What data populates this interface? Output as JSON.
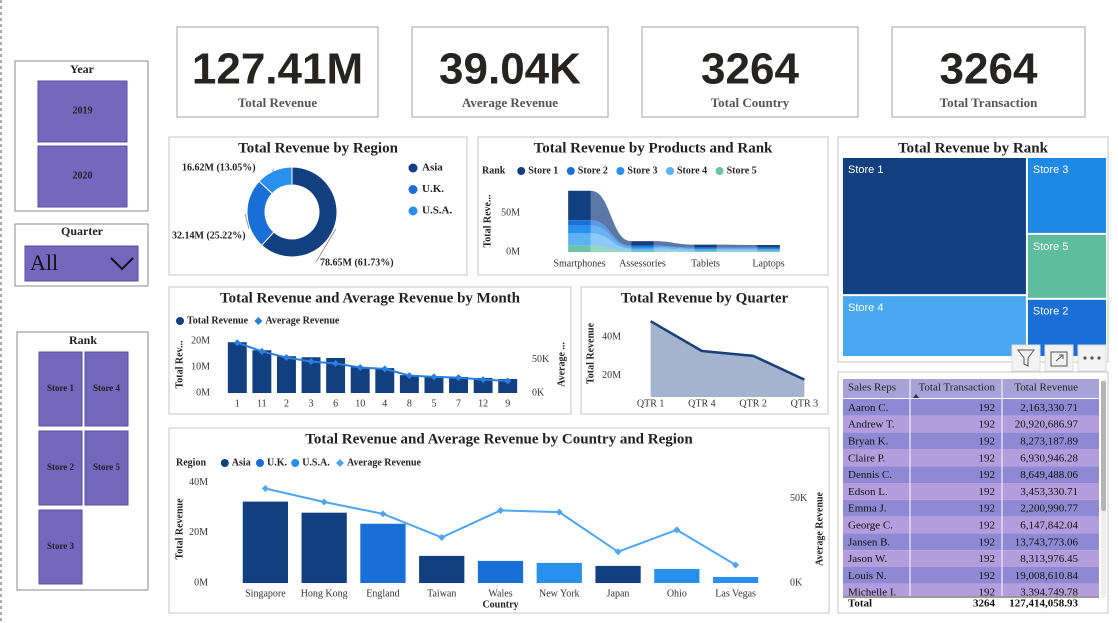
{
  "cards": [
    {
      "value": "127.41M",
      "label": "Total Revenue"
    },
    {
      "value": "39.04K",
      "label": "Average Revenue"
    },
    {
      "value": "3264",
      "label": "Total Country"
    },
    {
      "value": "3264",
      "label": "Total Transaction"
    }
  ],
  "slicers": {
    "year": {
      "title": "Year",
      "items": [
        "2019",
        "2020"
      ]
    },
    "quarter": {
      "title": "Quarter",
      "selected": "All"
    },
    "rank": {
      "title": "Rank",
      "items": [
        "Store 1",
        "Store 4",
        "Store 2",
        "Store 5",
        "Store 3"
      ]
    }
  },
  "chart_data": [
    {
      "type": "donut",
      "title": "Total Revenue by Region",
      "categories": [
        "Asia",
        "U.K.",
        "U.S.A."
      ],
      "values": [
        78.65,
        32.14,
        16.62
      ],
      "value_labels": [
        "78.65M (61.73%)",
        "32.14M (25.22%)",
        "16.62M (13.05%)"
      ],
      "colors": [
        "#123f80",
        "#1a6fd6",
        "#2a90ee"
      ],
      "legend": "right"
    },
    {
      "type": "ribbon",
      "title": "Total Revenue by Products and Rank",
      "legend_title": "Rank",
      "categories": [
        "Smartphones",
        "Assessories",
        "Tablets",
        "Laptops"
      ],
      "ylabel": "Total Reve...",
      "ylim": [
        0,
        80
      ],
      "yticks": [
        {
          "value": 0,
          "label": "0M"
        },
        {
          "value": 50,
          "label": "50M"
        }
      ],
      "series": [
        {
          "name": "Store 1",
          "color": "#123f80",
          "values": [
            38,
            6,
            4,
            3.5
          ]
        },
        {
          "name": "Store 2",
          "color": "#1a6fd6",
          "values": [
            7,
            1.5,
            1,
            1
          ]
        },
        {
          "name": "Store 3",
          "color": "#2a90ee",
          "values": [
            10,
            2,
            1.5,
            1.5
          ]
        },
        {
          "name": "Store 4",
          "color": "#5cb2f2",
          "values": [
            16,
            3,
            2,
            2
          ]
        },
        {
          "name": "Store 5",
          "color": "#6cc4a4",
          "values": [
            8,
            1.5,
            1,
            1
          ]
        }
      ]
    },
    {
      "type": "treemap",
      "title": "Total Revenue by Rank",
      "categories": [
        "Store 1",
        "Store 4",
        "Store 3",
        "Store 5",
        "Store 2"
      ],
      "values": [
        61.4,
        27.5,
        14.8,
        12.5,
        11.2
      ],
      "colors": [
        "#123f80",
        "#4aa8f0",
        "#1e88e5",
        "#5dbd9c",
        "#1a6fd6"
      ]
    },
    {
      "type": "combo",
      "title": "Total Revenue and Average Revenue by Month",
      "categories": [
        "1",
        "11",
        "2",
        "3",
        "6",
        "10",
        "4",
        "8",
        "5",
        "7",
        "12",
        "9"
      ],
      "ylabel": "Total Rev...",
      "y2label": "Average ...",
      "ylim": [
        0,
        22
      ],
      "yticks": [
        {
          "value": 0,
          "label": "0M"
        },
        {
          "value": 10,
          "label": "10M"
        },
        {
          "value": 20,
          "label": "20M"
        }
      ],
      "y2lim": [
        0,
        85
      ],
      "y2ticks": [
        {
          "value": 0,
          "label": "0K"
        },
        {
          "value": 50,
          "label": "50K"
        }
      ],
      "series": [
        {
          "name": "Total Revenue",
          "color": "#123f80",
          "values": [
            19.6,
            16.5,
            14.2,
            13.8,
            13.5,
            10.0,
            9.6,
            6.9,
            6.5,
            6.2,
            5.8,
            5.4
          ]
        },
        {
          "name": "Average Revenue",
          "color": "#2a7fdc",
          "axis": "y2",
          "values": [
            75,
            62,
            53,
            47,
            44,
            38,
            36,
            26,
            24,
            23,
            20,
            18
          ]
        }
      ]
    },
    {
      "type": "area",
      "title": "Total Revenue by Quarter",
      "categories": [
        "QTR 1",
        "QTR 4",
        "QTR 2",
        "QTR 3"
      ],
      "values": [
        48.2,
        32.8,
        30.3,
        18.0
      ],
      "ylabel": "Total Revenue",
      "ylim": [
        9,
        54
      ],
      "yticks": [
        {
          "value": 20,
          "label": "20M"
        },
        {
          "value": 40,
          "label": "40M"
        }
      ],
      "color": "#a4b4cf",
      "line_color": "#1b3f78"
    },
    {
      "type": "combo",
      "title": "Total Revenue and Average Revenue by Country and Region",
      "legend_title": "Region",
      "categories": [
        "Singapore",
        "Hong Kong",
        "England",
        "Taiwan",
        "Wales",
        "New York",
        "Japan",
        "Ohio",
        "Las Vegas"
      ],
      "xlabel": "Country",
      "ylabel": "Total Revenue",
      "y2label": "Average Revenue",
      "ylim": [
        0,
        43
      ],
      "yticks": [
        {
          "value": 0,
          "label": "0M"
        },
        {
          "value": 20,
          "label": "20M"
        },
        {
          "value": 40,
          "label": "40M"
        }
      ],
      "y2lim": [
        0,
        64
      ],
      "y2ticks": [
        {
          "value": 0,
          "label": "0K"
        },
        {
          "value": 50,
          "label": "50K"
        }
      ],
      "series": [
        {
          "name": "Asia",
          "color": "#123f80",
          "values": [
            32.4,
            28.0,
            null,
            10.8,
            null,
            null,
            6.8,
            null,
            null
          ]
        },
        {
          "name": "U.K.",
          "color": "#1a6fd6",
          "values": [
            null,
            null,
            23.6,
            null,
            8.8,
            null,
            null,
            null,
            null
          ]
        },
        {
          "name": "U.S.A.",
          "color": "#2a90ee",
          "values": [
            null,
            null,
            null,
            null,
            null,
            8.0,
            null,
            5.6,
            2.4
          ]
        },
        {
          "name": "Average Revenue",
          "color": "#4da6f0",
          "axis": "y2",
          "values": [
            56,
            48,
            41,
            27,
            43,
            42,
            18.5,
            31.5,
            10.7
          ]
        }
      ]
    }
  ],
  "table": {
    "columns": [
      "Sales Reps",
      "Total Transaction",
      "Total Revenue"
    ],
    "rows": [
      [
        "Aaron C.",
        "192",
        "2,163,330.71"
      ],
      [
        "Andrew T.",
        "192",
        "20,920,686.97"
      ],
      [
        "Bryan K.",
        "192",
        "8,273,187.89"
      ],
      [
        "Claire P.",
        "192",
        "6,930,946.28"
      ],
      [
        "Dennis C.",
        "192",
        "8,649,488.06"
      ],
      [
        "Edson L.",
        "192",
        "3,453,330.71"
      ],
      [
        "Emma J.",
        "192",
        "2,200,990.77"
      ],
      [
        "George C.",
        "192",
        "6,147,842.04"
      ],
      [
        "Jansen B.",
        "192",
        "13,743,773.06"
      ],
      [
        "Jason W.",
        "192",
        "8,313,976.45"
      ],
      [
        "Louis N.",
        "192",
        "19,008,610.84"
      ],
      [
        "Michelle I.",
        "192",
        "3,394,749.78"
      ]
    ],
    "total": [
      "Total",
      "3264",
      "127,414,058.93"
    ]
  }
}
